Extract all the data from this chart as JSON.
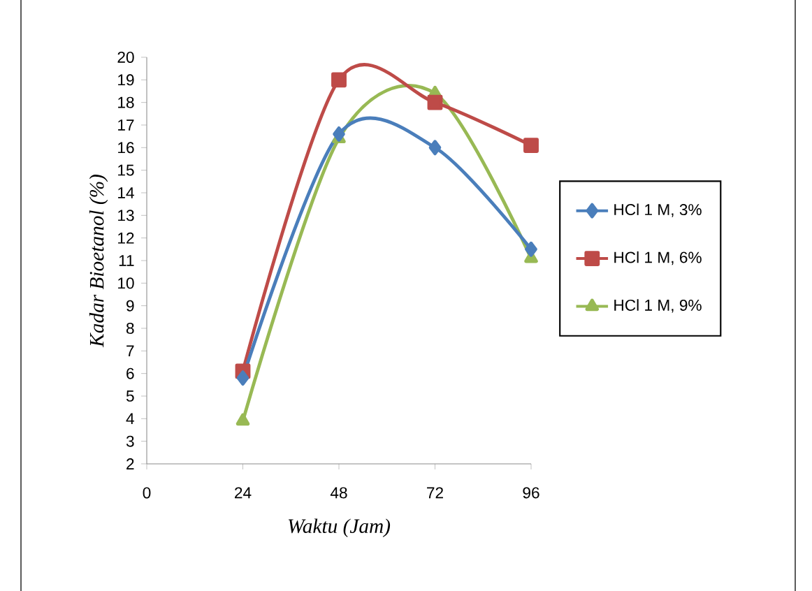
{
  "chart_data": {
    "type": "line",
    "xlabel": "Waktu (Jam)",
    "ylabel": "Kadar Bioetanol (%)",
    "x": [
      24,
      48,
      72,
      96
    ],
    "series": [
      {
        "name": "HCl 1 M, 3%",
        "color": "#4a7ebb",
        "marker": "diamond",
        "values": [
          5.8,
          16.6,
          16.0,
          11.5
        ]
      },
      {
        "name": "HCl 1 M, 6%",
        "color": "#be4b48",
        "marker": "square",
        "values": [
          6.1,
          19.0,
          18.0,
          16.1
        ]
      },
      {
        "name": "HCl 1 M, 9%",
        "color": "#98b954",
        "marker": "triangle",
        "values": [
          3.9,
          16.4,
          18.4,
          11.1
        ]
      }
    ],
    "xlim": [
      0,
      96
    ],
    "xticks": [
      0,
      24,
      48,
      72,
      96
    ],
    "ylim": [
      2,
      20
    ],
    "yticks": [
      2,
      3,
      4,
      5,
      6,
      7,
      8,
      9,
      10,
      11,
      12,
      13,
      14,
      15,
      16,
      17,
      18,
      19,
      20
    ],
    "grid": false,
    "legend": "right",
    "line_style": "solid"
  }
}
